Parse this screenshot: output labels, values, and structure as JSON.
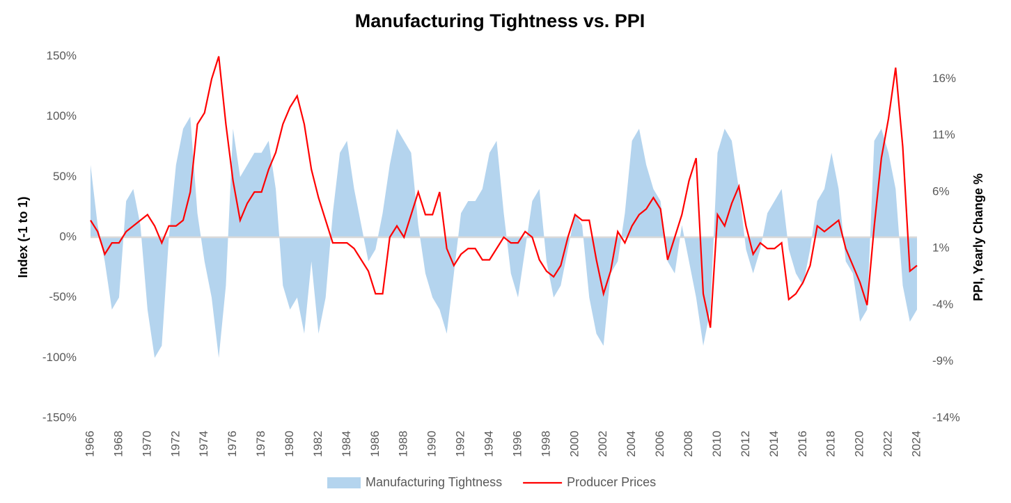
{
  "chart_data": {
    "type": "area-line",
    "title": "Manufacturing Tightness vs. PPI",
    "y_label": "Index (-1 to 1)",
    "y2_label": "PPI, Yearly Change %",
    "x": [
      1966,
      1966.5,
      1967,
      1967.5,
      1968,
      1968.5,
      1969,
      1969.5,
      1970,
      1970.5,
      1971,
      1971.5,
      1972,
      1972.5,
      1973,
      1973.5,
      1974,
      1974.5,
      1975,
      1975.5,
      1976,
      1976.5,
      1977,
      1977.5,
      1978,
      1978.5,
      1979,
      1979.5,
      1980,
      1980.5,
      1981,
      1981.5,
      1982,
      1982.5,
      1983,
      1983.5,
      1984,
      1984.5,
      1985,
      1985.5,
      1986,
      1986.5,
      1987,
      1987.5,
      1988,
      1988.5,
      1989,
      1989.5,
      1990,
      1990.5,
      1991,
      1991.5,
      1992,
      1992.5,
      1993,
      1993.5,
      1994,
      1994.5,
      1995,
      1995.5,
      1996,
      1996.5,
      1997,
      1997.5,
      1998,
      1998.5,
      1999,
      1999.5,
      2000,
      2000.5,
      2001,
      2001.5,
      2002,
      2002.5,
      2003,
      2003.5,
      2004,
      2004.5,
      2005,
      2005.5,
      2006,
      2006.5,
      2007,
      2007.5,
      2008,
      2008.5,
      2009,
      2009.5,
      2010,
      2010.5,
      2011,
      2011.5,
      2012,
      2012.5,
      2013,
      2013.5,
      2014,
      2014.5,
      2015,
      2015.5,
      2016,
      2016.5,
      2017,
      2017.5,
      2018,
      2018.5,
      2019,
      2019.5,
      2020,
      2020.5,
      2021,
      2021.5,
      2022,
      2022.5,
      2023,
      2023.5,
      2024
    ],
    "series": [
      {
        "name": "Manufacturing Tightness",
        "type": "area",
        "color": "#b4d4ee",
        "values": [
          60,
          10,
          -20,
          -60,
          -50,
          30,
          40,
          10,
          -60,
          -100,
          -90,
          0,
          60,
          90,
          100,
          20,
          -20,
          -50,
          -100,
          -40,
          90,
          50,
          60,
          70,
          70,
          80,
          40,
          -40,
          -60,
          -50,
          -80,
          -20,
          -80,
          -50,
          20,
          70,
          80,
          40,
          10,
          -20,
          -10,
          20,
          60,
          90,
          80,
          70,
          10,
          -30,
          -50,
          -60,
          -80,
          -30,
          20,
          30,
          30,
          40,
          70,
          80,
          20,
          -30,
          -50,
          -10,
          30,
          40,
          -20,
          -50,
          -40,
          -10,
          20,
          10,
          -50,
          -80,
          -90,
          -30,
          -20,
          20,
          80,
          90,
          60,
          40,
          30,
          -20,
          -30,
          10,
          -20,
          -50,
          -90,
          -60,
          70,
          90,
          80,
          40,
          -10,
          -30,
          -10,
          20,
          30,
          40,
          -10,
          -30,
          -40,
          -10,
          30,
          40,
          70,
          40,
          -20,
          -30,
          -70,
          -60,
          80,
          90,
          70,
          40,
          -40,
          -70,
          -60
        ]
      },
      {
        "name": "Producer Prices",
        "type": "line",
        "axis": "y2",
        "color": "#ff0000",
        "values": [
          3.5,
          2.5,
          0.5,
          1.5,
          1.5,
          2.5,
          3,
          3.5,
          4,
          3,
          1.5,
          3,
          3,
          3.5,
          6,
          12,
          13,
          16,
          18,
          12,
          7,
          3.5,
          5,
          6,
          6,
          8,
          9.5,
          12,
          13.5,
          14.5,
          12,
          8,
          5.5,
          3.5,
          1.5,
          1.5,
          1.5,
          1,
          0,
          -1,
          -3,
          -3,
          2,
          3,
          2,
          4,
          6,
          4,
          4,
          6,
          1,
          -0.5,
          0.5,
          1,
          1,
          0,
          0,
          1,
          2,
          1.5,
          1.5,
          2.5,
          2,
          0,
          -1,
          -1.5,
          -0.5,
          2,
          4,
          3.5,
          3.5,
          0,
          -3,
          -1,
          2.5,
          1.5,
          3,
          4,
          4.5,
          5.5,
          4.5,
          0,
          2,
          4,
          7,
          9,
          -3,
          -6,
          4,
          3,
          5,
          6.5,
          3,
          0.5,
          1.5,
          1,
          1,
          1.5,
          -3.5,
          -3,
          -2,
          -0.5,
          3,
          2.5,
          3,
          3.5,
          1,
          -0.5,
          -2,
          -4,
          3,
          9,
          12.5,
          17,
          10,
          -1,
          -0.5
        ]
      }
    ],
    "xlim": [
      1966,
      2024
    ],
    "xticks": [
      1966,
      1968,
      1970,
      1972,
      1974,
      1976,
      1978,
      1980,
      1982,
      1984,
      1986,
      1988,
      1990,
      1992,
      1994,
      1996,
      1998,
      2000,
      2002,
      2004,
      2006,
      2008,
      2010,
      2012,
      2014,
      2016,
      2018,
      2020,
      2022,
      2024
    ],
    "ylim": [
      -150,
      150
    ],
    "yticks": [
      {
        "value": -150,
        "label": "-150%"
      },
      {
        "value": -100,
        "label": "-100%"
      },
      {
        "value": -50,
        "label": "-50%"
      },
      {
        "value": 0,
        "label": "0%"
      },
      {
        "value": 50,
        "label": "50%"
      },
      {
        "value": 100,
        "label": "100%"
      },
      {
        "value": 150,
        "label": "150%"
      }
    ],
    "y2lim": [
      -14,
      18
    ],
    "y2ticks": [
      {
        "value": -14,
        "label": "-14%"
      },
      {
        "value": -9,
        "label": "-9%"
      },
      {
        "value": -4,
        "label": "-4%"
      },
      {
        "value": 1,
        "label": "1%"
      },
      {
        "value": 6,
        "label": "6%"
      },
      {
        "value": 11,
        "label": "11%"
      },
      {
        "value": 16,
        "label": "16%"
      }
    ],
    "legend": "bottom"
  }
}
